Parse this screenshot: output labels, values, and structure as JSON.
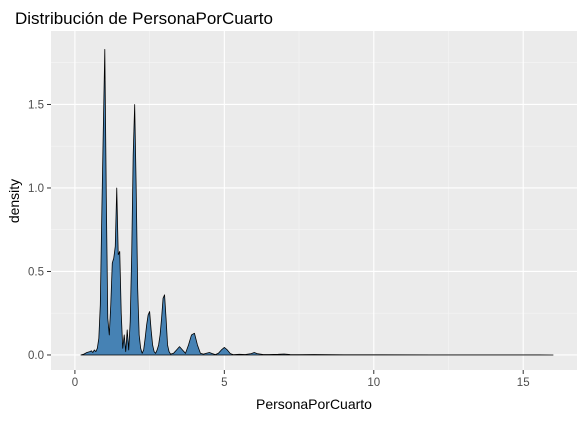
{
  "chart_data": {
    "type": "area",
    "title": "Distribución de PersonaPorCuarto",
    "xlabel": "PersonaPorCuarto",
    "ylabel": "density",
    "xlim": [
      -0.8,
      16.8
    ],
    "ylim": [
      -0.09,
      1.94
    ],
    "x_ticks": [
      0,
      5,
      10,
      15
    ],
    "x_tick_labels": [
      "0",
      "5",
      "10",
      "15"
    ],
    "y_ticks": [
      0.0,
      0.5,
      1.0,
      1.5
    ],
    "y_tick_labels": [
      "0.0",
      "0.5",
      "1.0",
      "1.5"
    ],
    "grid": true,
    "legend": "none",
    "colors": {
      "panel_background": "#ebebeb",
      "grid_major": "#ffffff",
      "grid_minor": "#f5f5f5",
      "fill": "#4682b4",
      "outline": "#000000",
      "tick_color": "#333333"
    },
    "series": [
      {
        "x": [
          0.2,
          0.3,
          0.4,
          0.5,
          0.55,
          0.6,
          0.65,
          0.7,
          0.75,
          0.8,
          0.85,
          0.9,
          0.95,
          1.0,
          1.05,
          1.1,
          1.15,
          1.2,
          1.25,
          1.3,
          1.35,
          1.4,
          1.45,
          1.5,
          1.55,
          1.6,
          1.65,
          1.7,
          1.75,
          1.8,
          1.85,
          1.9,
          1.95,
          2.0,
          2.05,
          2.1,
          2.15,
          2.2,
          2.25,
          2.3,
          2.35,
          2.4,
          2.45,
          2.5,
          2.55,
          2.6,
          2.65,
          2.7,
          2.75,
          2.8,
          2.85,
          2.9,
          2.95,
          3.0,
          3.05,
          3.1,
          3.15,
          3.2,
          3.3,
          3.4,
          3.5,
          3.6,
          3.7,
          3.8,
          3.9,
          4.0,
          4.1,
          4.2,
          4.3,
          4.4,
          4.5,
          4.6,
          4.7,
          4.8,
          4.9,
          5.0,
          5.1,
          5.2,
          5.3,
          5.5,
          5.7,
          5.9,
          6.0,
          6.1,
          6.3,
          6.5,
          6.8,
          7.0,
          7.2,
          7.5,
          8.0,
          8.5,
          9.0,
          10.0,
          12.0,
          14.0,
          15.5,
          16.0
        ],
        "y": [
          0.0,
          0.005,
          0.015,
          0.02,
          0.025,
          0.015,
          0.03,
          0.02,
          0.04,
          0.1,
          0.3,
          0.85,
          1.35,
          1.83,
          0.95,
          0.22,
          0.12,
          0.3,
          0.55,
          0.58,
          0.65,
          1.0,
          0.6,
          0.62,
          0.25,
          0.04,
          0.12,
          0.02,
          0.15,
          0.03,
          0.2,
          0.6,
          1.2,
          1.5,
          1.0,
          0.4,
          0.12,
          0.04,
          0.01,
          0.03,
          0.1,
          0.18,
          0.24,
          0.26,
          0.15,
          0.06,
          0.02,
          0.01,
          0.03,
          0.06,
          0.12,
          0.22,
          0.34,
          0.36,
          0.22,
          0.06,
          0.02,
          0.005,
          0.01,
          0.03,
          0.05,
          0.03,
          0.01,
          0.06,
          0.12,
          0.13,
          0.06,
          0.01,
          0.005,
          0.01,
          0.015,
          0.008,
          0.002,
          0.01,
          0.03,
          0.045,
          0.03,
          0.008,
          0.002,
          0.004,
          0.003,
          0.008,
          0.015,
          0.008,
          0.003,
          0.003,
          0.004,
          0.006,
          0.003,
          0.002,
          0.003,
          0.002,
          0.001,
          0.001,
          0.0005,
          0.0003,
          0.0002,
          0.0
        ]
      }
    ]
  }
}
